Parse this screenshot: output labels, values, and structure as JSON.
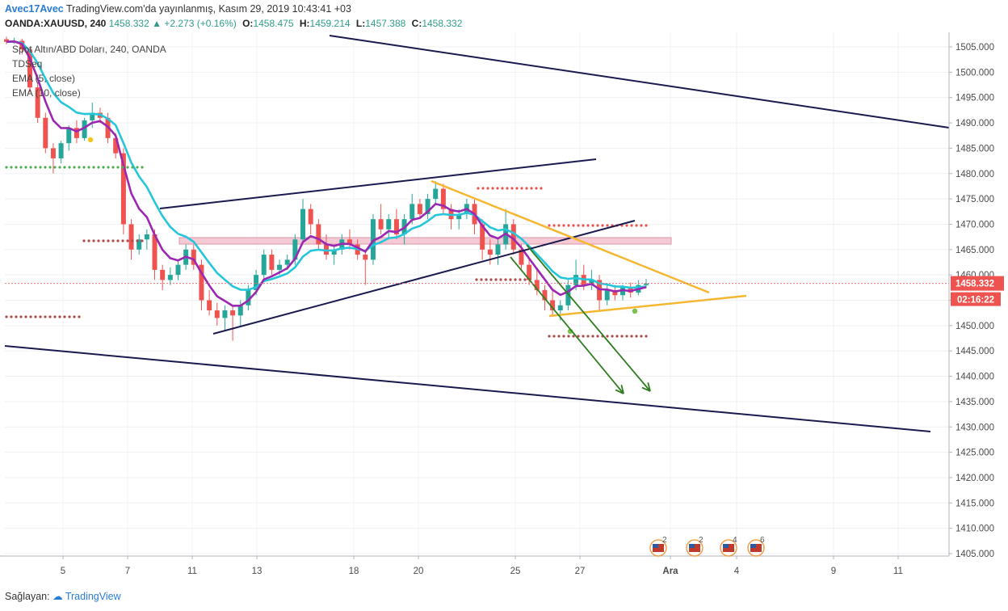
{
  "header": {
    "publish_user": "Avec17Avec",
    "publish_text": "TradingView.com'da yayınlanmış, Kasım 29, 2019 10:43:41 +03",
    "symbol": "OANDA:XAUUSD, 240",
    "last": "1458.332",
    "change": "+2.273 (+0.16%)",
    "open_label": "O:",
    "open": "1458.475",
    "high_label": "H:",
    "high": "1459.214",
    "low_label": "L:",
    "low": "1457.388",
    "close_label": "C:",
    "close": "1458.332"
  },
  "legend": {
    "title": "Spot Altın/ABD Doları, 240, OANDA",
    "indicators": [
      "TDSeq",
      "EMA (5, close)",
      "EMA (10, close)"
    ]
  },
  "price_scale": {
    "ticks": [
      "1505.000",
      "1500.000",
      "1495.000",
      "1490.000",
      "1485.000",
      "1480.000",
      "1475.000",
      "1470.000",
      "1465.000",
      "1460.000",
      "1455.000",
      "1450.000",
      "1445.000",
      "1440.000",
      "1435.000",
      "1430.000",
      "1425.000",
      "1420.000",
      "1415.000",
      "1410.000",
      "1405.000"
    ],
    "current_price": "1458.332",
    "countdown": "02:16:22"
  },
  "time_scale": {
    "ticks": [
      "5",
      "7",
      "11",
      "13",
      "18",
      "20",
      "25",
      "27",
      "Ara",
      "4",
      "9",
      "11"
    ]
  },
  "events": [
    {
      "flag": "us-flag-icon",
      "count": "2"
    },
    {
      "flag": "us-flag-icon",
      "count": "2"
    },
    {
      "flag": "us-flag-icon",
      "count": "4"
    },
    {
      "flag": "us-flag-icon",
      "count": "6"
    }
  ],
  "colors": {
    "up": "#26a69a",
    "down": "#ef5350",
    "ema5": "#9c27b0",
    "ema10": "#26c6da",
    "trendline": "#1a1a4e",
    "triangle": "#f5b731",
    "arrow": "#2e7d1e",
    "zone": "#f3c6d0"
  },
  "chart_data": {
    "type": "candlestick",
    "y_range": [
      1403,
      1507
    ],
    "series": [
      {
        "name": "OANDA:XAUUSD, 240",
        "points": [
          {
            "o": 1506.5,
            "h": 1507.0,
            "l": 1505.5,
            "c": 1506.0
          },
          {
            "o": 1506.0,
            "h": 1506.8,
            "l": 1505.6,
            "c": 1506.2
          },
          {
            "o": 1506.2,
            "h": 1506.6,
            "l": 1503.5,
            "c": 1504.5
          },
          {
            "o": 1504.5,
            "h": 1505.0,
            "l": 1496.0,
            "c": 1497.0
          },
          {
            "o": 1497.0,
            "h": 1498.0,
            "l": 1490.0,
            "c": 1491.0
          },
          {
            "o": 1491.0,
            "h": 1492.0,
            "l": 1484.0,
            "c": 1485.0
          },
          {
            "o": 1485.0,
            "h": 1486.0,
            "l": 1480.0,
            "c": 1483.0
          },
          {
            "o": 1483.0,
            "h": 1486.5,
            "l": 1482.0,
            "c": 1486.0
          },
          {
            "o": 1486.0,
            "h": 1489.5,
            "l": 1484.5,
            "c": 1489.0
          },
          {
            "o": 1489.0,
            "h": 1490.5,
            "l": 1486.0,
            "c": 1487.0
          },
          {
            "o": 1487.0,
            "h": 1491.0,
            "l": 1486.5,
            "c": 1490.5
          },
          {
            "o": 1490.5,
            "h": 1494.0,
            "l": 1489.0,
            "c": 1492.0
          },
          {
            "o": 1492.0,
            "h": 1493.0,
            "l": 1490.0,
            "c": 1491.0
          },
          {
            "o": 1491.0,
            "h": 1492.0,
            "l": 1486.0,
            "c": 1487.0
          },
          {
            "o": 1487.0,
            "h": 1488.0,
            "l": 1483.0,
            "c": 1484.0
          },
          {
            "o": 1484.0,
            "h": 1485.0,
            "l": 1468.0,
            "c": 1470.0
          },
          {
            "o": 1470.0,
            "h": 1471.0,
            "l": 1463.0,
            "c": 1465.0
          },
          {
            "o": 1465.0,
            "h": 1468.0,
            "l": 1464.0,
            "c": 1467.0
          },
          {
            "o": 1467.0,
            "h": 1469.0,
            "l": 1465.0,
            "c": 1468.0
          },
          {
            "o": 1468.0,
            "h": 1469.0,
            "l": 1459.0,
            "c": 1461.0
          },
          {
            "o": 1461.0,
            "h": 1462.0,
            "l": 1457.0,
            "c": 1459.0
          },
          {
            "o": 1459.0,
            "h": 1461.5,
            "l": 1458.0,
            "c": 1460.0
          },
          {
            "o": 1460.0,
            "h": 1463.0,
            "l": 1459.0,
            "c": 1462.0
          },
          {
            "o": 1462.0,
            "h": 1466.0,
            "l": 1461.0,
            "c": 1465.0
          },
          {
            "o": 1465.0,
            "h": 1466.0,
            "l": 1461.0,
            "c": 1462.0
          },
          {
            "o": 1462.0,
            "h": 1463.0,
            "l": 1453.0,
            "c": 1455.0
          },
          {
            "o": 1455.0,
            "h": 1457.0,
            "l": 1452.0,
            "c": 1453.0
          },
          {
            "o": 1453.0,
            "h": 1454.5,
            "l": 1450.0,
            "c": 1451.5
          },
          {
            "o": 1451.5,
            "h": 1454.0,
            "l": 1449.0,
            "c": 1453.0
          },
          {
            "o": 1453.0,
            "h": 1454.0,
            "l": 1447.0,
            "c": 1452.0
          },
          {
            "o": 1452.0,
            "h": 1455.0,
            "l": 1450.0,
            "c": 1454.0
          },
          {
            "o": 1454.0,
            "h": 1458.0,
            "l": 1453.0,
            "c": 1457.0
          },
          {
            "o": 1457.0,
            "h": 1461.0,
            "l": 1456.0,
            "c": 1460.0
          },
          {
            "o": 1460.0,
            "h": 1465.0,
            "l": 1459.0,
            "c": 1464.0
          },
          {
            "o": 1464.0,
            "h": 1465.0,
            "l": 1460.0,
            "c": 1461.0
          },
          {
            "o": 1461.0,
            "h": 1463.0,
            "l": 1460.0,
            "c": 1462.0
          },
          {
            "o": 1462.0,
            "h": 1464.0,
            "l": 1461.0,
            "c": 1463.0
          },
          {
            "o": 1463.0,
            "h": 1468.0,
            "l": 1462.0,
            "c": 1467.0
          },
          {
            "o": 1467.0,
            "h": 1475.0,
            "l": 1466.0,
            "c": 1473.0
          },
          {
            "o": 1473.0,
            "h": 1474.0,
            "l": 1468.0,
            "c": 1470.0
          },
          {
            "o": 1470.0,
            "h": 1471.0,
            "l": 1465.0,
            "c": 1466.0
          },
          {
            "o": 1466.0,
            "h": 1468.0,
            "l": 1463.0,
            "c": 1464.0
          },
          {
            "o": 1464.0,
            "h": 1466.0,
            "l": 1462.0,
            "c": 1465.0
          },
          {
            "o": 1465.0,
            "h": 1468.0,
            "l": 1464.0,
            "c": 1467.0
          },
          {
            "o": 1467.0,
            "h": 1469.0,
            "l": 1465.0,
            "c": 1466.0
          },
          {
            "o": 1466.0,
            "h": 1467.0,
            "l": 1463.0,
            "c": 1464.0
          },
          {
            "o": 1464.0,
            "h": 1465.0,
            "l": 1458.0,
            "c": 1463.0
          },
          {
            "o": 1463.0,
            "h": 1472.0,
            "l": 1462.0,
            "c": 1471.0
          },
          {
            "o": 1471.0,
            "h": 1474.0,
            "l": 1468.0,
            "c": 1469.0
          },
          {
            "o": 1469.0,
            "h": 1472.0,
            "l": 1467.0,
            "c": 1471.0
          },
          {
            "o": 1471.0,
            "h": 1473.0,
            "l": 1467.0,
            "c": 1468.0
          },
          {
            "o": 1468.0,
            "h": 1472.0,
            "l": 1466.0,
            "c": 1471.0
          },
          {
            "o": 1471.0,
            "h": 1476.0,
            "l": 1470.0,
            "c": 1474.0
          },
          {
            "o": 1474.0,
            "h": 1475.0,
            "l": 1471.0,
            "c": 1472.0
          },
          {
            "o": 1472.0,
            "h": 1476.0,
            "l": 1471.0,
            "c": 1475.0
          },
          {
            "o": 1475.0,
            "h": 1478.5,
            "l": 1474.0,
            "c": 1477.0
          },
          {
            "o": 1477.0,
            "h": 1478.0,
            "l": 1472.0,
            "c": 1473.0
          },
          {
            "o": 1473.0,
            "h": 1474.0,
            "l": 1469.0,
            "c": 1471.0
          },
          {
            "o": 1471.0,
            "h": 1473.0,
            "l": 1469.0,
            "c": 1472.0
          },
          {
            "o": 1472.0,
            "h": 1475.0,
            "l": 1471.0,
            "c": 1474.0
          },
          {
            "o": 1474.0,
            "h": 1475.0,
            "l": 1468.0,
            "c": 1470.0
          },
          {
            "o": 1470.0,
            "h": 1471.0,
            "l": 1463.0,
            "c": 1465.0
          },
          {
            "o": 1465.0,
            "h": 1467.0,
            "l": 1462.0,
            "c": 1464.0
          },
          {
            "o": 1464.0,
            "h": 1467.0,
            "l": 1462.0,
            "c": 1466.0
          },
          {
            "o": 1466.0,
            "h": 1473.0,
            "l": 1465.0,
            "c": 1470.0
          },
          {
            "o": 1470.0,
            "h": 1471.0,
            "l": 1464.0,
            "c": 1465.0
          },
          {
            "o": 1465.0,
            "h": 1466.0,
            "l": 1461.0,
            "c": 1462.0
          },
          {
            "o": 1462.0,
            "h": 1463.0,
            "l": 1458.0,
            "c": 1459.0
          },
          {
            "o": 1459.0,
            "h": 1461.0,
            "l": 1456.0,
            "c": 1457.0
          },
          {
            "o": 1457.0,
            "h": 1458.0,
            "l": 1453.0,
            "c": 1455.0
          },
          {
            "o": 1455.0,
            "h": 1457.0,
            "l": 1452.0,
            "c": 1453.0
          },
          {
            "o": 1453.0,
            "h": 1455.0,
            "l": 1451.0,
            "c": 1454.0
          },
          {
            "o": 1454.0,
            "h": 1459.0,
            "l": 1453.0,
            "c": 1458.0
          },
          {
            "o": 1458.0,
            "h": 1463.0,
            "l": 1457.0,
            "c": 1460.0
          },
          {
            "o": 1460.0,
            "h": 1462.0,
            "l": 1457.0,
            "c": 1458.0
          },
          {
            "o": 1458.0,
            "h": 1461.0,
            "l": 1457.0,
            "c": 1459.0
          },
          {
            "o": 1459.0,
            "h": 1460.0,
            "l": 1453.0,
            "c": 1455.0
          },
          {
            "o": 1455.0,
            "h": 1458.0,
            "l": 1454.0,
            "c": 1457.0
          },
          {
            "o": 1457.0,
            "h": 1458.0,
            "l": 1455.0,
            "c": 1456.0
          },
          {
            "o": 1456.0,
            "h": 1458.0,
            "l": 1455.0,
            "c": 1457.5
          },
          {
            "o": 1457.5,
            "h": 1458.5,
            "l": 1455.5,
            "c": 1456.5
          },
          {
            "o": 1456.5,
            "h": 1459.0,
            "l": 1456.0,
            "c": 1458.0
          },
          {
            "o": 1458.0,
            "h": 1459.2,
            "l": 1457.4,
            "c": 1458.3
          }
        ]
      }
    ]
  }
}
